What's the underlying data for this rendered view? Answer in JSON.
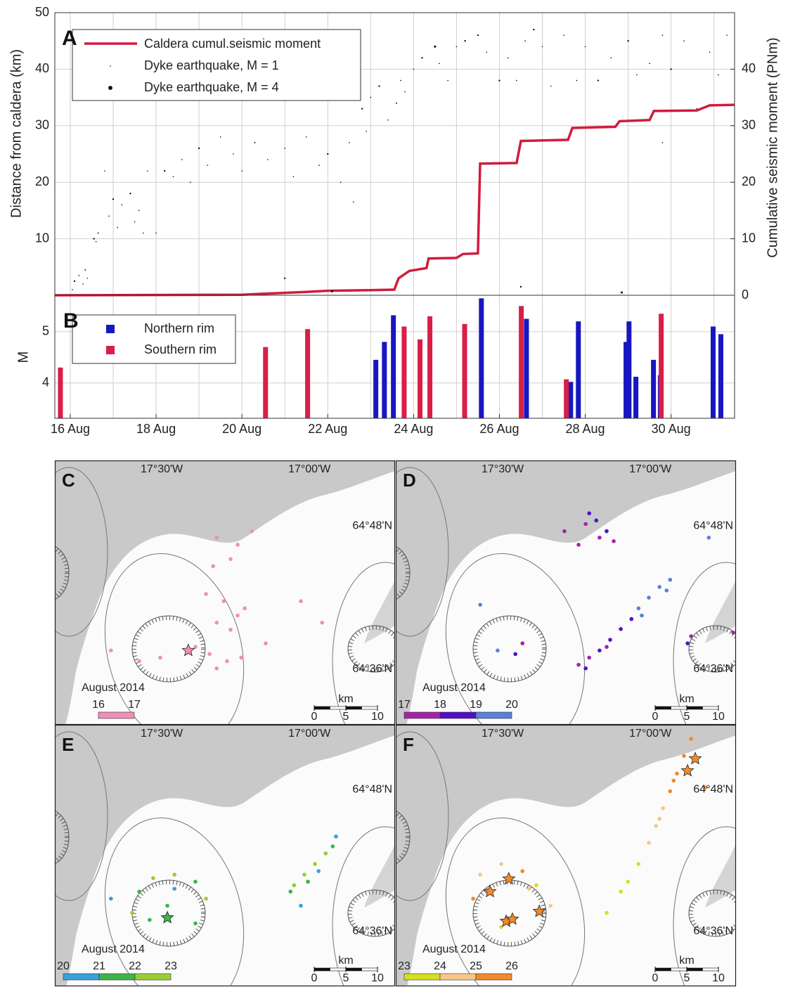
{
  "chart_data": [
    {
      "type": "line_scatter",
      "panel_label": "A",
      "xlim": [
        15.64,
        31.48
      ],
      "ylim": [
        0,
        50
      ],
      "yticks": [
        10,
        20,
        30,
        40,
        50
      ],
      "y2lim": [
        0,
        50
      ],
      "y2ticks": [
        0,
        10,
        20,
        30,
        40
      ],
      "ylabel": "Distance from caldera (km)",
      "y2label": "Cumulative seismic moment (PNm)",
      "grid": true,
      "series": [
        {
          "name": "Caldera cumul.seismic moment",
          "type": "line",
          "axis": "y2",
          "color": "#d01c3c",
          "x": [
            15.64,
            20.0,
            21.5,
            22.0,
            23.0,
            23.55,
            23.65,
            23.9,
            24.3,
            24.35,
            25.0,
            25.15,
            25.5,
            25.55,
            26.4,
            26.5,
            27.6,
            27.7,
            28.7,
            28.8,
            29.5,
            29.6,
            30.6,
            30.9,
            31.48
          ],
          "values": [
            0,
            0.1,
            0.6,
            0.8,
            0.9,
            1.0,
            3.0,
            4.3,
            4.8,
            6.5,
            6.6,
            7.3,
            7.4,
            23.3,
            23.4,
            27.3,
            27.5,
            29.6,
            29.8,
            30.8,
            31.0,
            32.6,
            32.7,
            33.6,
            33.7
          ]
        },
        {
          "type": "scatter",
          "color": "#000000",
          "x": [
            16.05,
            16.1,
            16.2,
            16.3,
            16.35,
            16.4,
            16.55,
            16.6,
            16.65,
            16.8,
            16.9,
            17.0,
            17.1,
            17.2,
            17.4,
            17.5,
            17.6,
            17.7,
            17.8,
            18.0,
            18.2,
            18.4,
            18.6,
            18.8,
            19.0,
            19.2,
            19.5,
            19.8,
            20.0,
            20.3,
            20.6,
            21.0,
            21.2,
            21.5,
            21.8,
            22.0,
            22.3,
            22.5,
            22.6,
            22.8,
            22.9,
            23.0,
            23.2,
            23.4,
            23.6,
            23.7,
            23.8,
            24.0,
            24.2,
            24.5,
            24.6,
            24.8,
            25.0,
            25.2,
            25.5,
            25.7,
            26.0,
            26.2,
            26.4,
            26.6,
            26.8,
            27.0,
            27.2,
            27.5,
            27.8,
            28.0,
            28.3,
            28.6,
            29.0,
            29.2,
            29.5,
            29.8,
            30.0,
            30.3,
            30.6,
            30.9,
            31.1,
            31.3,
            22.1,
            21.0,
            26.5,
            28.85,
            29.8
          ],
          "values": [
            1,
            2.5,
            3.5,
            2,
            4.5,
            3,
            10,
            9.5,
            11,
            22,
            14,
            17,
            12,
            16,
            18,
            13,
            15,
            11,
            22,
            11,
            22,
            21,
            24,
            20,
            26,
            23,
            28,
            25,
            22,
            27,
            24,
            26,
            21,
            28,
            23,
            25,
            20,
            27,
            16.5,
            33,
            29,
            35,
            37,
            31,
            34,
            38,
            36,
            40,
            42,
            44,
            41,
            38,
            44,
            45,
            46,
            43,
            38,
            42,
            38,
            45,
            47,
            44,
            37,
            46,
            38,
            44,
            38,
            42,
            45,
            39,
            41,
            46,
            40,
            45,
            33,
            43,
            39,
            46,
            0.7,
            3,
            1.5,
            0.5,
            27
          ],
          "mag": [
            1,
            1.5,
            1,
            1,
            1.2,
            1,
            1.5,
            1,
            1.2,
            1,
            1,
            1.5,
            1,
            1,
            1.5,
            1,
            1,
            1,
            1,
            1,
            1.5,
            1,
            1,
            1,
            1.5,
            1,
            1,
            1,
            1,
            1.2,
            1,
            1,
            1,
            1,
            1,
            1.5,
            1,
            1,
            1,
            1.5,
            1,
            1,
            1.5,
            1,
            1.2,
            1,
            1,
            1,
            1.5,
            2,
            1,
            1,
            1,
            1.5,
            1.5,
            1,
            1.5,
            1,
            1,
            1,
            1.5,
            1,
            1,
            1,
            1,
            1,
            1.5,
            1,
            1.5,
            1,
            1,
            1,
            1.5,
            1,
            1,
            1,
            1,
            1,
            2,
            1.5,
            1.5,
            2,
            1
          ]
        }
      ],
      "size_legend": [
        {
          "label": "Dyke earthquake, M = 1",
          "mag": 1
        },
        {
          "label": "Dyke earthquake, M = 4",
          "mag": 4
        }
      ]
    },
    {
      "type": "bar",
      "panel_label": "B",
      "xlim": [
        15.64,
        31.48
      ],
      "ylim": [
        3.31,
        5.71
      ],
      "yticks": [
        4,
        5
      ],
      "ylabel": "M",
      "grid": true,
      "xticks": [
        {
          "value": 16,
          "label": "16 Aug"
        },
        {
          "value": 18,
          "label": "18 Aug"
        },
        {
          "value": 20,
          "label": "20 Aug"
        },
        {
          "value": 22,
          "label": "22 Aug"
        },
        {
          "value": 24,
          "label": "24 Aug"
        },
        {
          "value": 26,
          "label": "26 Aug"
        },
        {
          "value": 28,
          "label": "28 Aug"
        },
        {
          "value": 30,
          "label": "30 Aug"
        }
      ],
      "xminorticks": [
        17,
        19,
        21,
        23,
        25,
        27,
        29,
        31
      ],
      "series": [
        {
          "name": "Northern rim",
          "color": "#1717c0",
          "x": [
            23.12,
            23.32,
            23.53,
            25.58,
            26.63,
            27.66,
            27.84,
            28.95,
            29.02,
            29.18,
            29.59,
            29.75,
            30.98,
            31.16
          ],
          "values": [
            4.45,
            4.8,
            5.32,
            5.65,
            5.25,
            4.02,
            5.2,
            4.8,
            5.2,
            4.12,
            4.45,
            4.15,
            5.1,
            4.95
          ]
        },
        {
          "name": "Southern rim",
          "color": "#d91e48",
          "x": [
            15.77,
            20.55,
            21.53,
            23.78,
            24.15,
            24.38,
            25.19,
            26.51,
            27.56,
            29.77
          ],
          "values": [
            4.3,
            4.7,
            5.05,
            5.1,
            4.85,
            5.3,
            5.15,
            5.5,
            4.07,
            5.35
          ]
        }
      ]
    },
    {
      "type": "map",
      "panel_label": "C",
      "xlim": [
        -17.862,
        -16.71
      ],
      "ylim": [
        64.522,
        64.892
      ],
      "xticks": [
        {
          "value": -17.5,
          "label": "17°30'W"
        },
        {
          "value": -17.0,
          "label": "17°00'W"
        }
      ],
      "yticks": [
        {
          "value": 64.8,
          "label": "64°48'N"
        },
        {
          "value": 64.6,
          "label": "64°36'N"
        }
      ],
      "points": {
        "x": [
          -17.314,
          -17.243,
          -17.195,
          -17.267,
          -17.326,
          -17.35,
          -17.29,
          -17.243,
          -17.314,
          -17.267,
          -17.219,
          -17.386,
          -17.338,
          -17.279,
          -17.231,
          -17.314,
          -17.41,
          -17.505,
          -17.576,
          -17.148,
          -17.029,
          -16.957,
          -17.672
        ],
        "y": [
          64.784,
          64.774,
          64.793,
          64.754,
          64.744,
          64.705,
          64.695,
          64.675,
          64.665,
          64.655,
          64.685,
          64.631,
          64.621,
          64.611,
          64.616,
          64.601,
          64.624,
          64.616,
          64.611,
          64.636,
          64.695,
          64.665,
          64.626
        ],
        "day": [
          16.6,
          16.7,
          16.8,
          16.7,
          16.6,
          16.5,
          16.4,
          16.5,
          16.4,
          16.3,
          16.5,
          16.2,
          16.3,
          16.2,
          16.3,
          16.1,
          16.2,
          16.4,
          16.5,
          16.4,
          16.6,
          16.7,
          16.8
        ]
      },
      "stars": {
        "x": [
          -17.41
        ],
        "y": [
          64.626
        ],
        "day": [
          16.5
        ]
      },
      "colorbar": {
        "label": "August 2014",
        "ticks": [
          16,
          17
        ],
        "colors": [
          "#ee8fba"
        ]
      },
      "scalebar": {
        "label": "km",
        "ticks": [
          0,
          5,
          10
        ]
      }
    },
    {
      "type": "map",
      "panel_label": "D",
      "xlim": [
        -17.862,
        -16.71
      ],
      "ylim": [
        64.522,
        64.892
      ],
      "xticks": [
        {
          "value": -17.5,
          "label": "17°30'W"
        },
        {
          "value": -17.0,
          "label": "17°00'W"
        }
      ],
      "yticks": [
        {
          "value": 64.8,
          "label": "64°48'N"
        },
        {
          "value": 64.6,
          "label": "64°36'N"
        }
      ],
      "points": {
        "x": [
          -17.291,
          -17.219,
          -17.172,
          -17.243,
          -17.148,
          -17.207,
          -17.183,
          -17.124,
          -17.243,
          -17.207,
          -17.172,
          -17.136,
          -17.1,
          -17.064,
          -17.04,
          -17.005,
          -16.969,
          -16.933,
          -16.945,
          -17.029,
          -17.219,
          -17.148,
          -17.576,
          -17.433,
          -17.517,
          -17.457,
          -16.862,
          -16.719,
          -16.802,
          -16.874
        ],
        "y": [
          64.793,
          64.803,
          64.784,
          64.774,
          64.793,
          64.818,
          64.808,
          64.779,
          64.606,
          64.616,
          64.626,
          64.641,
          64.656,
          64.67,
          64.685,
          64.7,
          64.715,
          64.725,
          64.71,
          64.675,
          64.601,
          64.631,
          64.69,
          64.636,
          64.626,
          64.621,
          64.646,
          64.651,
          64.784,
          64.636
        ],
        "day": [
          17.3,
          17.5,
          17.6,
          17.4,
          18.2,
          18.4,
          18.6,
          17.8,
          17.6,
          17.8,
          18.1,
          18.3,
          18.5,
          18.8,
          19.2,
          19.4,
          19.6,
          19.8,
          19.5,
          19.1,
          18.0,
          17.9,
          19.3,
          17.7,
          19.5,
          18.5,
          17.5,
          17.3,
          19.8,
          18.3
        ]
      },
      "colorbar": {
        "label": "August 2014",
        "ticks": [
          17,
          18,
          19,
          20
        ],
        "colors": [
          "#a424a8",
          "#5210c8",
          "#5b80d8"
        ]
      },
      "scalebar": {
        "label": "km",
        "ticks": [
          0,
          5,
          10
        ]
      }
    },
    {
      "type": "map",
      "panel_label": "E",
      "xlim": [
        -17.862,
        -16.71
      ],
      "ylim": [
        64.522,
        64.892
      ],
      "xticks": [
        {
          "value": -17.5,
          "label": "17°30'W"
        },
        {
          "value": -17.0,
          "label": "17°00'W"
        }
      ],
      "yticks": [
        {
          "value": 64.8,
          "label": "64°48'N"
        },
        {
          "value": 64.6,
          "label": "64°36'N"
        }
      ],
      "points": {
        "x": [
          -17.052,
          -17.017,
          -16.981,
          -16.945,
          -16.921,
          -17.005,
          -16.969,
          -17.064,
          -16.91,
          -17.029,
          -17.529,
          -17.457,
          -17.386,
          -17.576,
          -17.6,
          -17.541,
          -17.35,
          -17.386,
          -17.457,
          -17.672,
          -17.481
        ],
        "y": [
          64.665,
          64.68,
          64.695,
          64.71,
          64.72,
          64.67,
          64.685,
          64.656,
          64.734,
          64.636,
          64.675,
          64.68,
          64.67,
          64.656,
          64.626,
          64.616,
          64.646,
          64.611,
          64.66,
          64.646,
          64.636
        ],
        "day": [
          22.5,
          22.6,
          22.3,
          22.8,
          21.5,
          21.3,
          20.5,
          21.8,
          20.3,
          20.6,
          22.4,
          22.7,
          21.2,
          21.6,
          22.1,
          21.4,
          22.5,
          21.7,
          20.4,
          20.2,
          21.9
        ]
      },
      "stars": {
        "x": [
          -17.481
        ],
        "y": [
          64.619
        ],
        "day": [
          21.5
        ]
      },
      "colorbar": {
        "label": "August 2014",
        "ticks": [
          20,
          21,
          22,
          23
        ],
        "colors": [
          "#3aa0d8",
          "#3cb44a",
          "#9acd32"
        ]
      },
      "scalebar": {
        "label": "km",
        "ticks": [
          0,
          5,
          10
        ]
      }
    },
    {
      "type": "map",
      "panel_label": "F",
      "xlim": [
        -17.862,
        -16.71
      ],
      "ylim": [
        64.522,
        64.892
      ],
      "xticks": [
        {
          "value": -17.5,
          "label": "17°30'W"
        },
        {
          "value": -17.0,
          "label": "17°00'W"
        }
      ],
      "yticks": [
        {
          "value": 64.8,
          "label": "64°48'N"
        },
        {
          "value": 64.6,
          "label": "64°36'N"
        }
      ],
      "points": {
        "x": [
          -17.1,
          -17.076,
          -17.04,
          -17.005,
          -16.981,
          -16.957,
          -16.933,
          -16.91,
          -16.886,
          -16.862,
          -16.921,
          -16.969,
          -16.814,
          -17.148,
          -17.576,
          -17.505,
          -17.433,
          -17.386,
          -17.6,
          -17.338,
          -17.505,
          -17.41
        ],
        "y": [
          64.656,
          64.67,
          64.695,
          64.725,
          64.749,
          64.774,
          64.798,
          64.823,
          64.848,
          64.872,
          64.813,
          64.759,
          64.803,
          64.626,
          64.68,
          64.695,
          64.685,
          64.665,
          64.646,
          64.636,
          64.606,
          64.66
        ],
        "day": [
          23.3,
          23.5,
          23.7,
          24.2,
          24.5,
          24.8,
          25.2,
          25.5,
          25.7,
          25.9,
          25.4,
          24.6,
          25.3,
          23.2,
          24.5,
          24.3,
          25.6,
          23.8,
          25.2,
          24.7,
          23.5,
          24.9
        ]
      },
      "stars": {
        "x": [
          -17.479,
          -17.543,
          -17.488,
          -17.467,
          -17.376,
          -16.874,
          -16.848
        ],
        "y": [
          64.674,
          64.656,
          64.614,
          64.617,
          64.628,
          64.827,
          64.844
        ],
        "day": [
          25.6,
          25.4,
          25.7,
          25.5,
          25.8,
          25.3,
          25.2
        ]
      },
      "colorbar": {
        "label": "August 2014",
        "ticks": [
          23,
          24,
          25,
          26
        ],
        "colors": [
          "#d4e020",
          "#f8c68a",
          "#f08a2a"
        ]
      },
      "scalebar": {
        "label": "km",
        "ticks": [
          0,
          5,
          10
        ]
      }
    }
  ]
}
